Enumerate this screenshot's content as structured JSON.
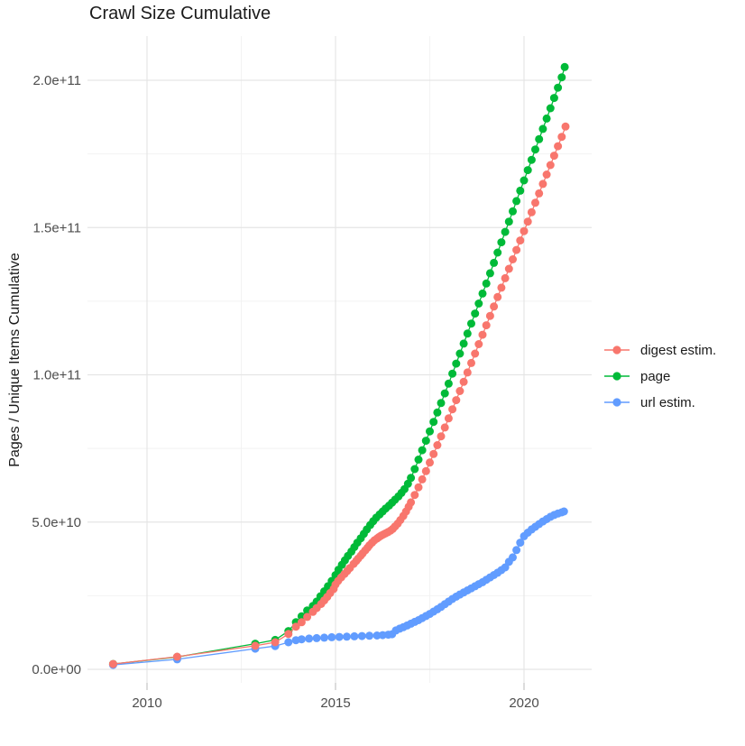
{
  "title": "Crawl Size Cumulative",
  "y_axis_title": "Pages / Unique Items Cumulative",
  "legend": {
    "items": [
      {
        "label": "digest estim."
      },
      {
        "label": "page"
      },
      {
        "label": "url estim."
      }
    ]
  },
  "chart_data": {
    "type": "scatter",
    "subtype": "points-with-connecting-lines",
    "title": "Crawl Size Cumulative",
    "xlabel": "",
    "ylabel": "Pages / Unique Items Cumulative",
    "value_unit": "billions (1e9) of pages / unique items",
    "x_range_years": [
      2008.4,
      2021.8
    ],
    "y_range_billions": [
      0,
      215
    ],
    "grid": "major and minor, light gray on white panel",
    "legend_position": "right-center",
    "x_ticks": [
      {
        "label": "2010",
        "year": 2010
      },
      {
        "label": "2015",
        "year": 2015
      },
      {
        "label": "2020",
        "year": 2020
      }
    ],
    "x_minor_years": [
      2012.5,
      2017.5
    ],
    "y_ticks": [
      {
        "label": "0.0e+00",
        "billions": 0
      },
      {
        "label": "5.0e+10",
        "billions": 50
      },
      {
        "label": "1.0e+11",
        "billions": 100
      },
      {
        "label": "1.5e+11",
        "billions": 150
      },
      {
        "label": "2.0e+11",
        "billions": 200
      }
    ],
    "y_minor_billions": [
      25,
      75,
      125,
      175
    ],
    "series": [
      {
        "name": "digest estim.",
        "color": "#F8766D",
        "points": [
          [
            2009.1,
            1.8
          ],
          [
            2010.8,
            4.3
          ],
          [
            2012.87,
            8.0
          ],
          [
            2013.4,
            9.2
          ],
          [
            2013.75,
            12.0
          ],
          [
            2013.95,
            14.5
          ],
          [
            2014.1,
            16.0
          ],
          [
            2014.25,
            17.8
          ],
          [
            2014.4,
            19.5
          ],
          [
            2014.5,
            20.8
          ],
          [
            2014.62,
            22.2
          ],
          [
            2014.7,
            23.4
          ],
          [
            2014.78,
            24.6
          ],
          [
            2014.86,
            25.9
          ],
          [
            2014.95,
            27.3
          ],
          [
            2015.0,
            28.8
          ],
          [
            2015.07,
            30.0
          ],
          [
            2015.15,
            31.2
          ],
          [
            2015.24,
            32.4
          ],
          [
            2015.31,
            33.4
          ],
          [
            2015.38,
            34.4
          ],
          [
            2015.48,
            35.8
          ],
          [
            2015.55,
            36.8
          ],
          [
            2015.6,
            37.6
          ],
          [
            2015.67,
            38.6
          ],
          [
            2015.72,
            39.4
          ],
          [
            2015.79,
            40.4
          ],
          [
            2015.85,
            41.3
          ],
          [
            2015.9,
            42.1
          ],
          [
            2015.97,
            43.0
          ],
          [
            2016.03,
            43.8
          ],
          [
            2016.1,
            44.4
          ],
          [
            2016.15,
            44.9
          ],
          [
            2016.21,
            45.4
          ],
          [
            2016.27,
            45.8
          ],
          [
            2016.33,
            46.2
          ],
          [
            2016.39,
            46.6
          ],
          [
            2016.46,
            47.1
          ],
          [
            2016.52,
            47.7
          ],
          [
            2016.58,
            48.5
          ],
          [
            2016.65,
            49.5
          ],
          [
            2016.72,
            50.7
          ],
          [
            2016.8,
            52.1
          ],
          [
            2016.87,
            53.6
          ],
          [
            2016.94,
            55.2
          ],
          [
            2017.0,
            56.7
          ],
          [
            2017.1,
            59.2
          ],
          [
            2017.2,
            61.8
          ],
          [
            2017.3,
            64.5
          ],
          [
            2017.4,
            67.3
          ],
          [
            2017.5,
            70.2
          ],
          [
            2017.6,
            73.1
          ],
          [
            2017.7,
            76.1
          ],
          [
            2017.8,
            79.1
          ],
          [
            2017.9,
            82.1
          ],
          [
            2018.0,
            85.2
          ],
          [
            2018.1,
            88.3
          ],
          [
            2018.2,
            91.4
          ],
          [
            2018.3,
            94.5
          ],
          [
            2018.4,
            97.6
          ],
          [
            2018.5,
            100.8
          ],
          [
            2018.6,
            104.0
          ],
          [
            2018.7,
            107.2
          ],
          [
            2018.8,
            110.4
          ],
          [
            2018.9,
            113.6
          ],
          [
            2019.0,
            116.8
          ],
          [
            2019.1,
            120.0
          ],
          [
            2019.2,
            123.2
          ],
          [
            2019.3,
            126.4
          ],
          [
            2019.4,
            129.6
          ],
          [
            2019.5,
            132.8
          ],
          [
            2019.6,
            136.0
          ],
          [
            2019.7,
            139.2
          ],
          [
            2019.8,
            142.4
          ],
          [
            2019.9,
            145.6
          ],
          [
            2020.0,
            148.8
          ],
          [
            2020.1,
            152.0
          ],
          [
            2020.2,
            155.2
          ],
          [
            2020.3,
            158.4
          ],
          [
            2020.4,
            161.6
          ],
          [
            2020.5,
            164.8
          ],
          [
            2020.6,
            168.0
          ],
          [
            2020.7,
            171.2
          ],
          [
            2020.8,
            174.4
          ],
          [
            2020.9,
            177.6
          ],
          [
            2021.0,
            180.8
          ],
          [
            2021.1,
            184.3
          ]
        ]
      },
      {
        "name": "page",
        "color": "#00BA38",
        "points": [
          [
            2009.1,
            1.8
          ],
          [
            2010.8,
            4.2
          ],
          [
            2012.87,
            8.7
          ],
          [
            2013.4,
            10.0
          ],
          [
            2013.75,
            13.0
          ],
          [
            2013.95,
            16.0
          ],
          [
            2014.1,
            18.0
          ],
          [
            2014.25,
            20.0
          ],
          [
            2014.4,
            21.5
          ],
          [
            2014.5,
            23.0
          ],
          [
            2014.6,
            24.8
          ],
          [
            2014.7,
            26.5
          ],
          [
            2014.8,
            28.2
          ],
          [
            2014.9,
            30.0
          ],
          [
            2015.0,
            32.0
          ],
          [
            2015.08,
            33.8
          ],
          [
            2015.17,
            35.5
          ],
          [
            2015.25,
            37.0
          ],
          [
            2015.33,
            38.5
          ],
          [
            2015.42,
            40.0
          ],
          [
            2015.5,
            41.5
          ],
          [
            2015.58,
            43.0
          ],
          [
            2015.67,
            44.5
          ],
          [
            2015.75,
            46.0
          ],
          [
            2015.83,
            47.5
          ],
          [
            2015.92,
            49.0
          ],
          [
            2016.0,
            50.3
          ],
          [
            2016.08,
            51.5
          ],
          [
            2016.17,
            52.6
          ],
          [
            2016.25,
            53.6
          ],
          [
            2016.33,
            54.6
          ],
          [
            2016.42,
            55.6
          ],
          [
            2016.5,
            56.6
          ],
          [
            2016.58,
            57.6
          ],
          [
            2016.67,
            58.7
          ],
          [
            2016.75,
            59.9
          ],
          [
            2016.83,
            61.2
          ],
          [
            2016.92,
            63.0
          ],
          [
            2017.0,
            65.0
          ],
          [
            2017.1,
            68.0
          ],
          [
            2017.2,
            71.2
          ],
          [
            2017.3,
            74.4
          ],
          [
            2017.4,
            77.6
          ],
          [
            2017.5,
            80.8
          ],
          [
            2017.6,
            84.0
          ],
          [
            2017.7,
            87.2
          ],
          [
            2017.8,
            90.4
          ],
          [
            2017.9,
            93.7
          ],
          [
            2018.0,
            97.0
          ],
          [
            2018.1,
            100.4
          ],
          [
            2018.2,
            103.8
          ],
          [
            2018.3,
            107.2
          ],
          [
            2018.4,
            110.6
          ],
          [
            2018.5,
            114.0
          ],
          [
            2018.6,
            117.4
          ],
          [
            2018.7,
            120.8
          ],
          [
            2018.8,
            124.2
          ],
          [
            2018.9,
            127.6
          ],
          [
            2019.0,
            131.0
          ],
          [
            2019.1,
            134.5
          ],
          [
            2019.2,
            138.0
          ],
          [
            2019.3,
            141.5
          ],
          [
            2019.4,
            145.0
          ],
          [
            2019.5,
            148.5
          ],
          [
            2019.6,
            152.0
          ],
          [
            2019.7,
            155.5
          ],
          [
            2019.8,
            159.0
          ],
          [
            2019.9,
            162.5
          ],
          [
            2020.0,
            166.0
          ],
          [
            2020.1,
            169.5
          ],
          [
            2020.2,
            173.0
          ],
          [
            2020.3,
            176.5
          ],
          [
            2020.4,
            180.0
          ],
          [
            2020.5,
            183.5
          ],
          [
            2020.6,
            187.0
          ],
          [
            2020.7,
            190.5
          ],
          [
            2020.8,
            194.0
          ],
          [
            2020.9,
            197.5
          ],
          [
            2021.0,
            201.0
          ],
          [
            2021.08,
            204.5
          ]
        ]
      },
      {
        "name": "url estim.",
        "color": "#619CFF",
        "points": [
          [
            2009.1,
            1.5
          ],
          [
            2010.8,
            3.4
          ],
          [
            2012.87,
            7.0
          ],
          [
            2013.4,
            7.9
          ],
          [
            2013.75,
            9.2
          ],
          [
            2013.95,
            9.9
          ],
          [
            2014.1,
            10.2
          ],
          [
            2014.3,
            10.45
          ],
          [
            2014.5,
            10.6
          ],
          [
            2014.7,
            10.75
          ],
          [
            2014.9,
            10.9
          ],
          [
            2015.1,
            11.0
          ],
          [
            2015.3,
            11.1
          ],
          [
            2015.5,
            11.2
          ],
          [
            2015.7,
            11.3
          ],
          [
            2015.9,
            11.4
          ],
          [
            2016.1,
            11.5
          ],
          [
            2016.25,
            11.6
          ],
          [
            2016.4,
            11.75
          ],
          [
            2016.5,
            11.9
          ],
          [
            2016.6,
            13.2
          ],
          [
            2016.7,
            13.8
          ],
          [
            2016.8,
            14.3
          ],
          [
            2016.9,
            14.9
          ],
          [
            2017.0,
            15.5
          ],
          [
            2017.1,
            16.1
          ],
          [
            2017.2,
            16.7
          ],
          [
            2017.3,
            17.4
          ],
          [
            2017.4,
            18.1
          ],
          [
            2017.5,
            18.8
          ],
          [
            2017.6,
            19.6
          ],
          [
            2017.7,
            20.4
          ],
          [
            2017.8,
            21.2
          ],
          [
            2017.9,
            22.1
          ],
          [
            2018.0,
            23.0
          ],
          [
            2018.1,
            23.9
          ],
          [
            2018.2,
            24.7
          ],
          [
            2018.3,
            25.4
          ],
          [
            2018.4,
            26.1
          ],
          [
            2018.5,
            26.8
          ],
          [
            2018.6,
            27.5
          ],
          [
            2018.7,
            28.2
          ],
          [
            2018.8,
            28.9
          ],
          [
            2018.9,
            29.6
          ],
          [
            2019.0,
            30.4
          ],
          [
            2019.1,
            31.2
          ],
          [
            2019.2,
            32.0
          ],
          [
            2019.3,
            32.8
          ],
          [
            2019.4,
            33.7
          ],
          [
            2019.5,
            34.6
          ],
          [
            2019.6,
            36.5
          ],
          [
            2019.7,
            38.0
          ],
          [
            2019.8,
            40.5
          ],
          [
            2019.9,
            43.0
          ],
          [
            2020.0,
            45.2
          ],
          [
            2020.1,
            46.4
          ],
          [
            2020.2,
            47.5
          ],
          [
            2020.3,
            48.4
          ],
          [
            2020.4,
            49.3
          ],
          [
            2020.5,
            50.2
          ],
          [
            2020.6,
            51.0
          ],
          [
            2020.7,
            51.8
          ],
          [
            2020.8,
            52.4
          ],
          [
            2020.9,
            52.9
          ],
          [
            2021.0,
            53.3
          ],
          [
            2021.06,
            53.6
          ]
        ]
      }
    ],
    "colors": {
      "digest_estim": "#F8766D",
      "page": "#00BA38",
      "url_estim": "#619CFF",
      "grid_major": "#E5E5E5",
      "grid_minor": "#F2F2F2",
      "tick_mark": "#CCCCCC",
      "axis_text": "#4D4D4D",
      "title_text": "#1A1A1A"
    }
  }
}
